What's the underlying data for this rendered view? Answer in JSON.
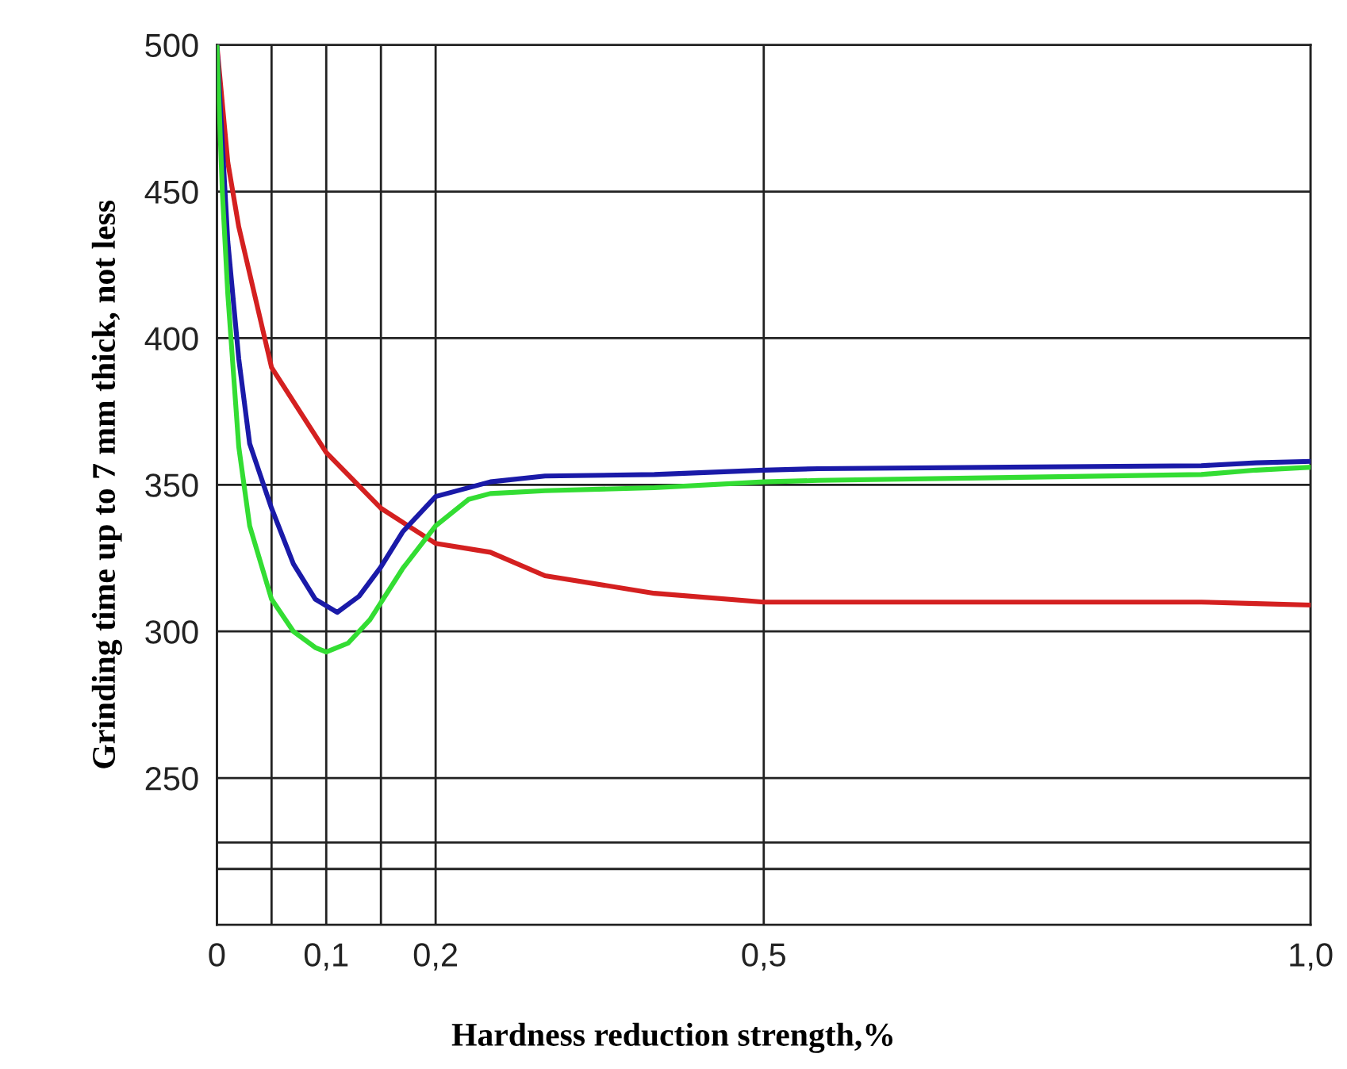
{
  "chart_data": {
    "type": "line",
    "xlabel": "Hardness reduction strength,%",
    "ylabel": "Grinding time up to 7 mm thick, not less",
    "xlim": [
      0,
      1.0
    ],
    "ylim": [
      200,
      500
    ],
    "xticks": [
      0,
      {
        "value": 0.05,
        "label": null
      },
      {
        "value": 0.1,
        "label": "0,1"
      },
      {
        "value": 0.15,
        "label": null
      },
      {
        "value": 0.2,
        "label": "0,2"
      },
      {
        "value": 0.5,
        "label": "0,5"
      },
      {
        "value": 1.0,
        "label": "1,0"
      }
    ],
    "yticks": [
      {
        "value": 219,
        "label": null
      },
      {
        "value": 228,
        "label": null
      },
      250,
      300,
      350,
      400,
      450,
      500
    ],
    "grid": true,
    "legend": false,
    "series": [
      {
        "color": "#d42020",
        "x": [
          0,
          0.01,
          0.02,
          0.05,
          0.1,
          0.15,
          0.2,
          0.25,
          0.3,
          0.4,
          0.5,
          0.55,
          0.9,
          0.95,
          1.0
        ],
        "values": [
          500,
          460,
          438,
          390,
          361,
          342,
          330,
          327,
          319,
          313,
          310,
          310,
          310,
          309.5,
          309
        ]
      },
      {
        "color": "#1a1aa8",
        "x": [
          0,
          0.01,
          0.02,
          0.03,
          0.05,
          0.07,
          0.09,
          0.11,
          0.13,
          0.15,
          0.17,
          0.2,
          0.25,
          0.3,
          0.4,
          0.5,
          0.55,
          0.9,
          0.95,
          1.0
        ],
        "values": [
          500,
          433,
          393,
          364,
          342,
          323,
          311,
          306.5,
          312,
          322,
          334,
          346,
          351,
          353,
          353.5,
          355,
          355.5,
          356.5,
          357.5,
          358
        ]
      },
      {
        "color": "#33dd33",
        "x": [
          0,
          0.005,
          0.01,
          0.02,
          0.03,
          0.05,
          0.07,
          0.09,
          0.1,
          0.12,
          0.14,
          0.17,
          0.2,
          0.23,
          0.25,
          0.3,
          0.4,
          0.5,
          0.55,
          0.9,
          0.95,
          1.0
        ],
        "values": [
          500,
          450,
          415,
          363,
          336,
          311,
          300,
          294.5,
          293,
          296,
          304,
          321.5,
          336,
          345,
          347,
          348,
          349,
          351,
          351.5,
          353.5,
          355,
          356
        ]
      }
    ]
  }
}
